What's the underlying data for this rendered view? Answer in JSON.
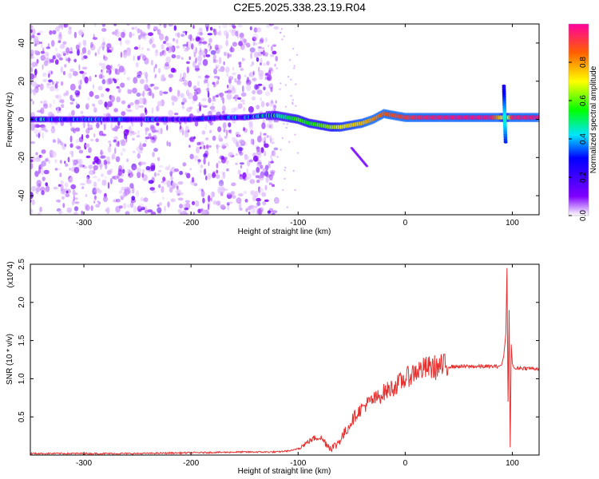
{
  "figure": {
    "title": "C2E5.2025.338.23.19.R04"
  },
  "chart_data": [
    {
      "type": "heatmap",
      "xlabel": "Height of straight line (km)",
      "ylabel": "Frequency (Hz)",
      "xlim": [
        -350,
        125
      ],
      "ylim": [
        -50,
        50
      ],
      "xticks": [
        -300,
        -200,
        -100,
        0,
        100
      ],
      "yticks": [
        -40,
        -20,
        0,
        20,
        40
      ],
      "colorbar": {
        "label": "Normalized spectral amplitude",
        "range": [
          0.0,
          1.0
        ],
        "ticks": [
          0.0,
          0.2,
          0.4,
          0.6,
          0.8
        ],
        "tick_labels": [
          "0.0",
          "0.2",
          "0.4",
          "0.6",
          "0.8"
        ]
      },
      "ridge_frequency": {
        "x": [
          -350,
          -300,
          -250,
          -200,
          -170,
          -150,
          -130,
          -120,
          -110,
          -100,
          -90,
          -80,
          -70,
          -60,
          -50,
          -40,
          -30,
          -20,
          -10,
          0,
          20,
          50,
          80,
          90,
          95,
          100,
          125
        ],
        "y": [
          0,
          0,
          0,
          0,
          1,
          1,
          2,
          2,
          1,
          0,
          -2,
          -3,
          -4,
          -4,
          -3,
          -2,
          0,
          3,
          2,
          1,
          1,
          1,
          1,
          1,
          1,
          1,
          1
        ]
      },
      "ridge_amplitude": {
        "x": [
          -350,
          -300,
          -200,
          -150,
          -130,
          -110,
          -100,
          -90,
          -80,
          -60,
          -40,
          -20,
          0,
          20,
          50,
          80,
          90,
          95,
          100,
          125
        ],
        "y": [
          0.35,
          0.3,
          0.25,
          0.3,
          0.4,
          0.5,
          0.6,
          0.55,
          0.6,
          0.7,
          0.75,
          0.85,
          0.9,
          0.95,
          0.97,
          0.97,
          0.7,
          0.6,
          0.95,
          0.97
        ]
      }
    },
    {
      "type": "line",
      "xlabel": "Height of straight line (km)",
      "ylabel": "SNR (10 * v/v)",
      "y_multiplier_label": "(x10^4)",
      "xlim": [
        -350,
        125
      ],
      "ylim": [
        0,
        2.5
      ],
      "xticks": [
        -300,
        -200,
        -100,
        0,
        100
      ],
      "yticks": [
        0.5,
        1.0,
        1.5,
        2.0,
        2.5
      ],
      "ytick_labels": [
        "0.5",
        "1.0",
        "1.5",
        "2.0",
        "2.5"
      ],
      "line_color": "#e8312f",
      "series": [
        {
          "x": [
            -350,
            -300,
            -250,
            -200,
            -150,
            -120,
            -105,
            -100,
            -95,
            -90,
            -85,
            -80,
            -75,
            -70,
            -65,
            -60,
            -55,
            -50,
            -45,
            -40,
            -35,
            -30,
            -25,
            -20,
            -15,
            -10,
            -5,
            0,
            5,
            10,
            20,
            30,
            40,
            50,
            60,
            70,
            80,
            85,
            90,
            92,
            94,
            95,
            96,
            97,
            98,
            99,
            100,
            102,
            105,
            110,
            125
          ],
          "y": [
            0.02,
            0.02,
            0.02,
            0.03,
            0.04,
            0.04,
            0.06,
            0.09,
            0.13,
            0.18,
            0.22,
            0.24,
            0.17,
            0.1,
            0.12,
            0.22,
            0.32,
            0.45,
            0.55,
            0.62,
            0.68,
            0.72,
            0.76,
            0.82,
            0.86,
            0.9,
            0.95,
            1.0,
            1.05,
            1.1,
            1.14,
            1.15,
            1.16,
            1.16,
            1.16,
            1.16,
            1.16,
            1.16,
            1.18,
            1.3,
            1.6,
            2.45,
            0.7,
            1.9,
            0.1,
            1.45,
            1.2,
            1.12,
            1.14,
            1.14,
            1.13
          ]
        }
      ]
    }
  ]
}
